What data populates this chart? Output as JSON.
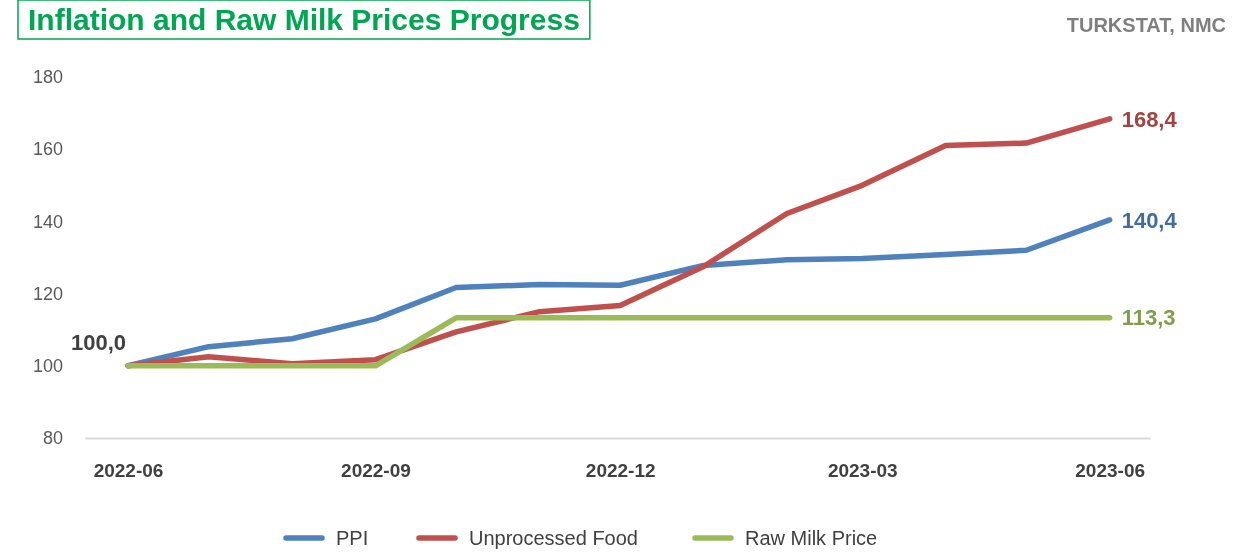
{
  "chart_data": {
    "type": "line",
    "title": "Inflation and Raw Milk Prices Progress",
    "annotations": [
      "TURKSTAT, NMC",
      {
        "text": "100,0",
        "x": "2022-06",
        "y": 100
      }
    ],
    "x": [
      "2022-06",
      "2022-07",
      "2022-08",
      "2022-09",
      "2022-10",
      "2022-11",
      "2022-12",
      "2023-01",
      "2023-02",
      "2023-03",
      "2023-04",
      "2023-05",
      "2023-06"
    ],
    "series": [
      {
        "name": "PPI",
        "color": "#4f81bd",
        "values": [
          100,
          105.3,
          107.5,
          113,
          121.7,
          122.5,
          122.3,
          127.8,
          129.4,
          129.7,
          130.8,
          132,
          140.4
        ],
        "value_labels": [
          null,
          null,
          null,
          null,
          null,
          null,
          null,
          null,
          null,
          null,
          null,
          null,
          "140,4"
        ]
      },
      {
        "name": "Unprocessed Food",
        "color": "#c0504d",
        "values": [
          100,
          102.5,
          100.6,
          101.7,
          109.4,
          115,
          116.7,
          127.5,
          142.2,
          150,
          161,
          161.7,
          168.4
        ],
        "value_labels": [
          null,
          null,
          null,
          null,
          null,
          null,
          null,
          null,
          null,
          null,
          null,
          null,
          "168,4"
        ]
      },
      {
        "name": "Raw Milk Price",
        "color": "#9bbb59",
        "values": [
          100,
          100,
          100,
          100,
          113.3,
          113.3,
          113.3,
          113.3,
          113.3,
          113.3,
          113.3,
          113.3,
          113.3
        ],
        "value_labels": [
          null,
          null,
          null,
          null,
          null,
          null,
          null,
          null,
          null,
          null,
          null,
          null,
          "113,3"
        ]
      }
    ],
    "xlim": [
      "2022-05-16",
      "2023-06-16"
    ],
    "xticks": [
      {
        "value": "2022-06",
        "label": "2022-06"
      },
      {
        "value": "2022-09",
        "label": "2022-09"
      },
      {
        "value": "2022-12",
        "label": "2022-12"
      },
      {
        "value": "2023-03",
        "label": "2023-03"
      },
      {
        "value": "2023-06",
        "label": "2023-06"
      }
    ],
    "ylim": [
      80,
      180
    ],
    "yticks": [
      80,
      100,
      120,
      140,
      160,
      180
    ],
    "legend": "bottom",
    "marker": "none",
    "line_style": "solid"
  }
}
